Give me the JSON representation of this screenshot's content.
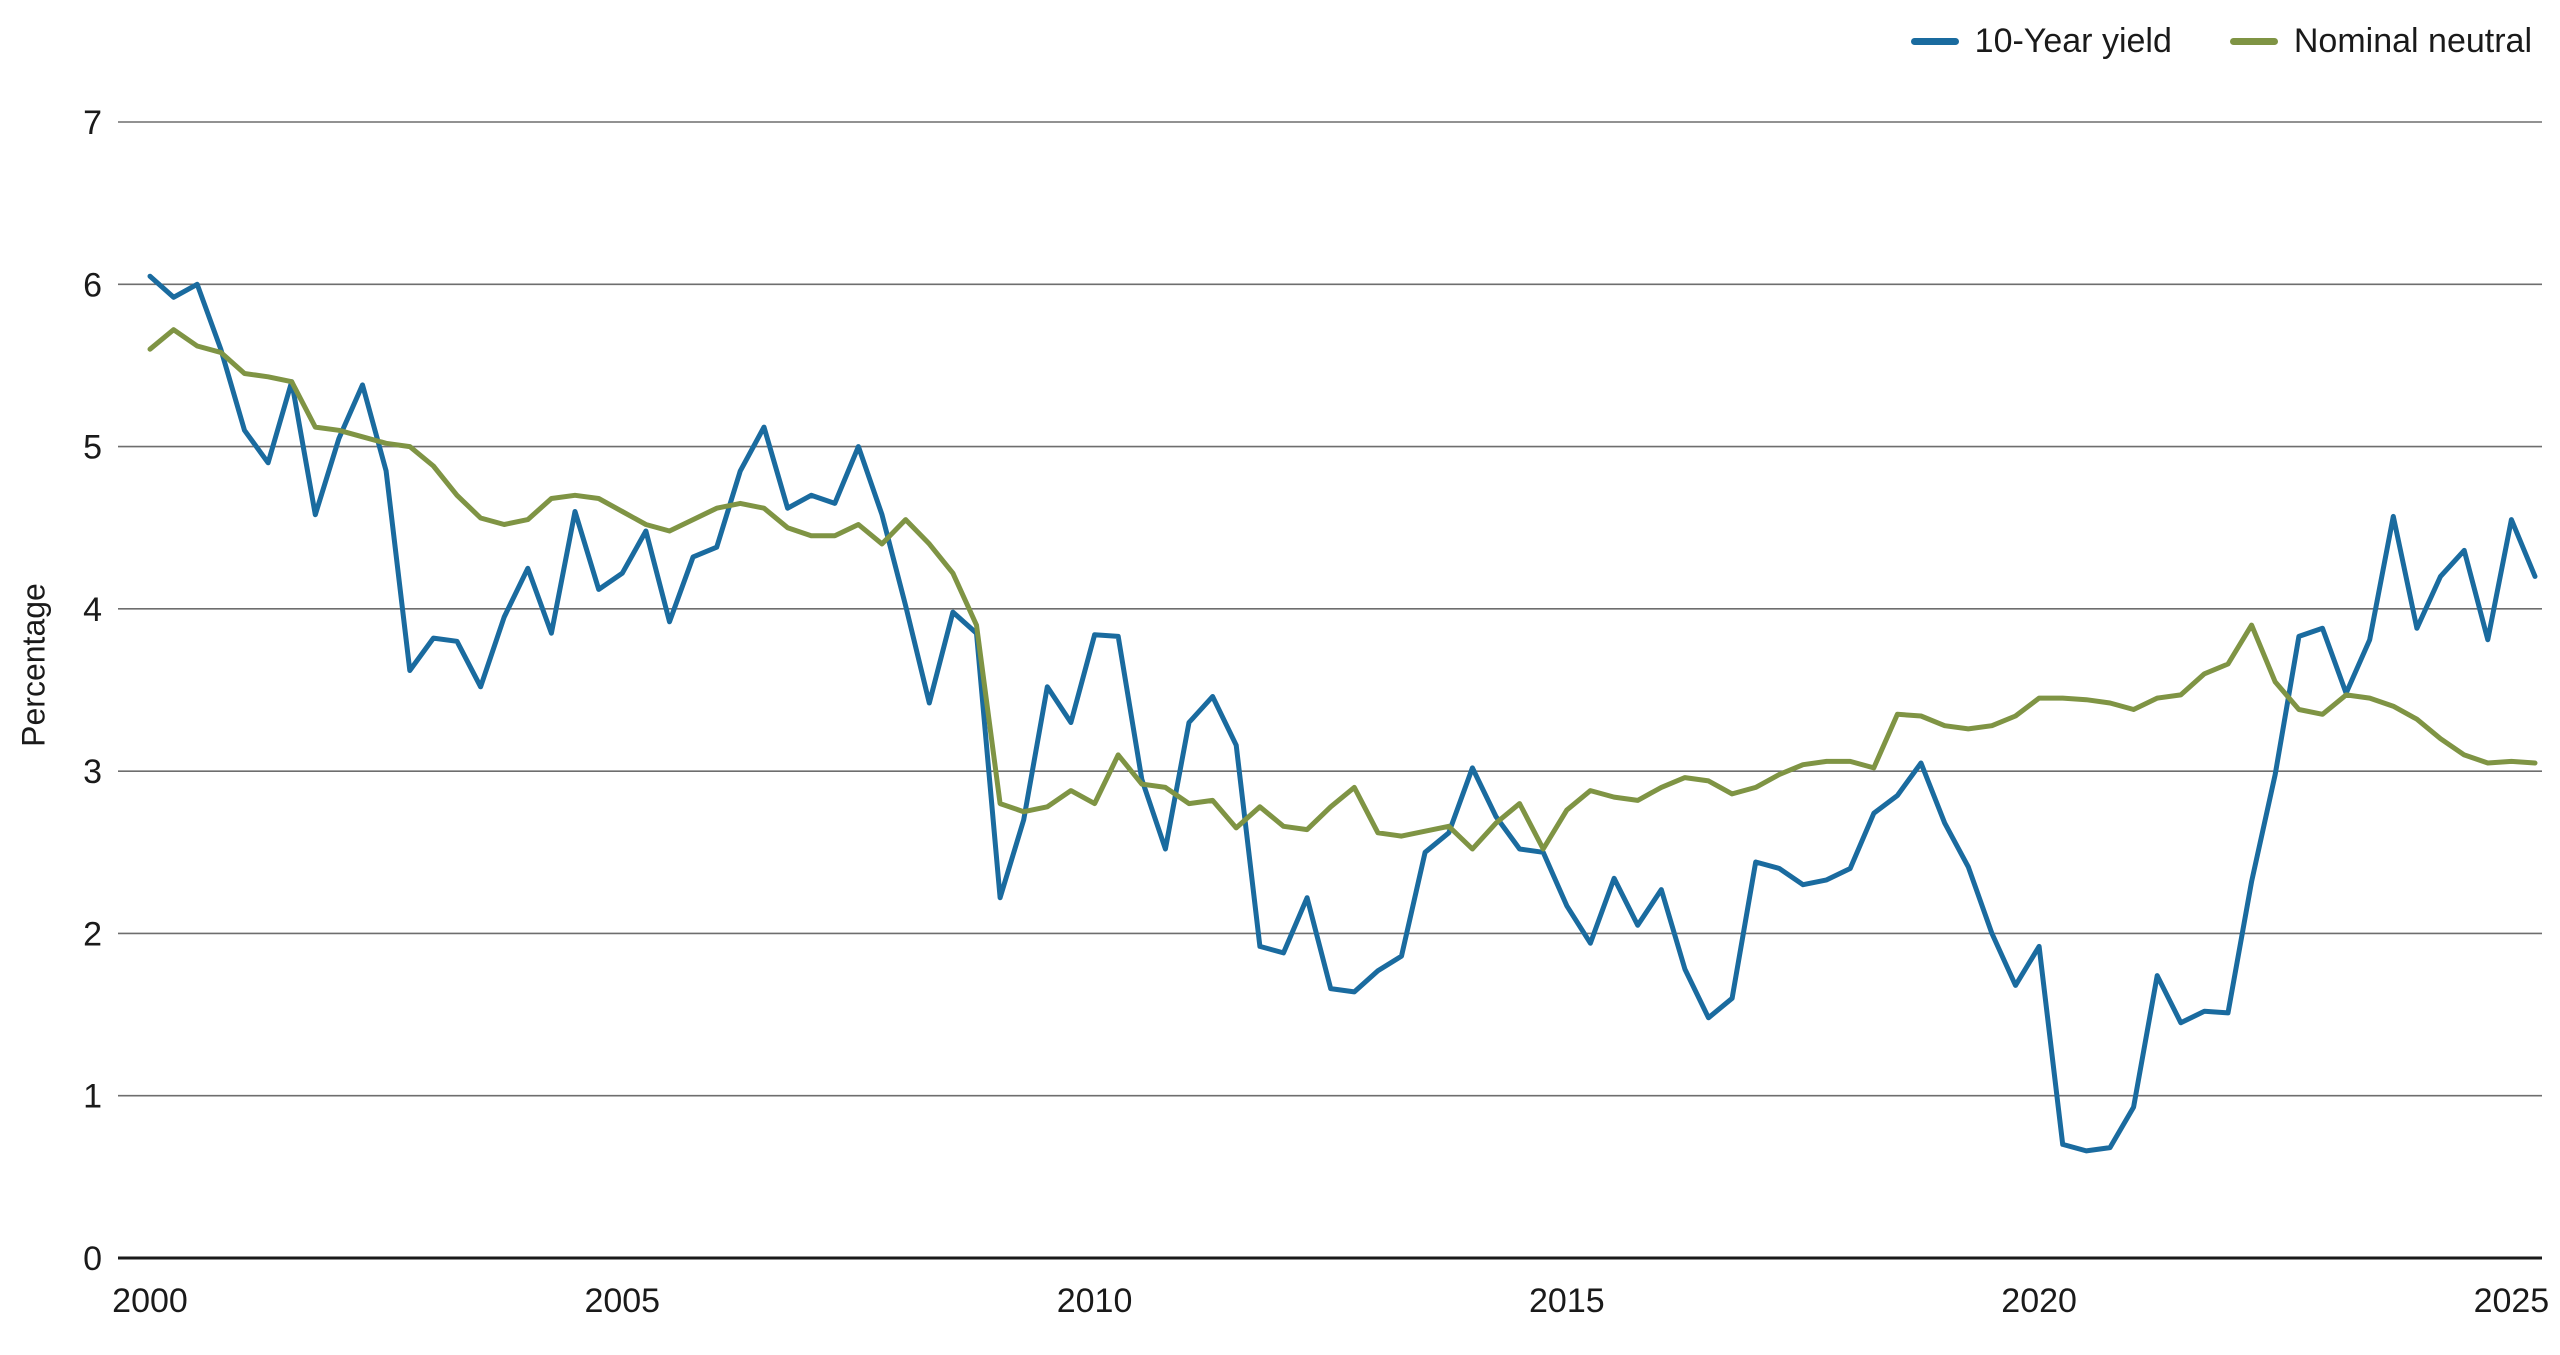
{
  "page": {
    "background": "#ffffff"
  },
  "chart_data": {
    "type": "line",
    "title": "",
    "xlabel": "",
    "ylabel": "Percentage",
    "xlim": [
      2000,
      2025.25
    ],
    "ylim": [
      0,
      7
    ],
    "x_start": 2000,
    "x_step": 0.25,
    "xticks": [
      2000,
      2005,
      2010,
      2015,
      2020,
      2025
    ],
    "yticks": [
      0,
      1,
      2,
      3,
      4,
      5,
      6,
      7
    ],
    "grid": "horizontal",
    "legend_position": "top-right",
    "grid_color": "#6e6e6e",
    "axis_color": "#1a1a1a",
    "text_color": "#1a1a1a",
    "line_width": 5,
    "series": [
      {
        "name": "10-Year yield",
        "color": "#1a6b9f",
        "values": [
          6.05,
          5.92,
          6.0,
          5.6,
          5.1,
          4.9,
          5.4,
          4.58,
          5.05,
          5.38,
          4.85,
          3.62,
          3.82,
          3.8,
          3.52,
          3.95,
          4.25,
          3.85,
          4.6,
          4.12,
          4.22,
          4.48,
          3.92,
          4.32,
          4.38,
          4.85,
          5.12,
          4.62,
          4.7,
          4.65,
          5.0,
          4.58,
          4.02,
          3.42,
          3.98,
          3.85,
          2.22,
          2.7,
          3.52,
          3.3,
          3.84,
          3.83,
          2.95,
          2.52,
          3.3,
          3.46,
          3.16,
          1.92,
          1.88,
          2.22,
          1.66,
          1.64,
          1.77,
          1.86,
          2.5,
          2.62,
          3.02,
          2.72,
          2.52,
          2.5,
          2.17,
          1.94,
          2.34,
          2.05,
          2.27,
          1.78,
          1.48,
          1.6,
          2.44,
          2.4,
          2.3,
          2.33,
          2.4,
          2.74,
          2.85,
          3.05,
          2.68,
          2.41,
          2.0,
          1.68,
          1.92,
          0.7,
          0.66,
          0.68,
          0.93,
          1.74,
          1.45,
          1.52,
          1.51,
          2.32,
          2.98,
          3.83,
          3.88,
          3.48,
          3.81,
          4.57,
          3.88,
          4.2,
          4.36,
          3.81,
          4.55,
          4.2
        ]
      },
      {
        "name": "Nominal neutral",
        "color": "#7f9444",
        "values": [
          5.6,
          5.72,
          5.62,
          5.58,
          5.45,
          5.43,
          5.4,
          5.12,
          5.1,
          5.06,
          5.02,
          5.0,
          4.88,
          4.7,
          4.56,
          4.52,
          4.55,
          4.68,
          4.7,
          4.68,
          4.6,
          4.52,
          4.48,
          4.55,
          4.62,
          4.65,
          4.62,
          4.5,
          4.45,
          4.45,
          4.52,
          4.4,
          4.55,
          4.4,
          4.22,
          3.9,
          2.8,
          2.75,
          2.78,
          2.88,
          2.8,
          3.1,
          2.92,
          2.9,
          2.8,
          2.82,
          2.65,
          2.78,
          2.66,
          2.64,
          2.78,
          2.9,
          2.62,
          2.6,
          2.63,
          2.66,
          2.52,
          2.68,
          2.8,
          2.52,
          2.76,
          2.88,
          2.84,
          2.82,
          2.9,
          2.96,
          2.94,
          2.86,
          2.9,
          2.98,
          3.04,
          3.06,
          3.06,
          3.02,
          3.35,
          3.34,
          3.28,
          3.26,
          3.28,
          3.34,
          3.45,
          3.45,
          3.44,
          3.42,
          3.38,
          3.45,
          3.47,
          3.6,
          3.66,
          3.9,
          3.55,
          3.38,
          3.35,
          3.47,
          3.45,
          3.4,
          3.32,
          3.2,
          3.1,
          3.05,
          3.06,
          3.05
        ]
      }
    ]
  }
}
